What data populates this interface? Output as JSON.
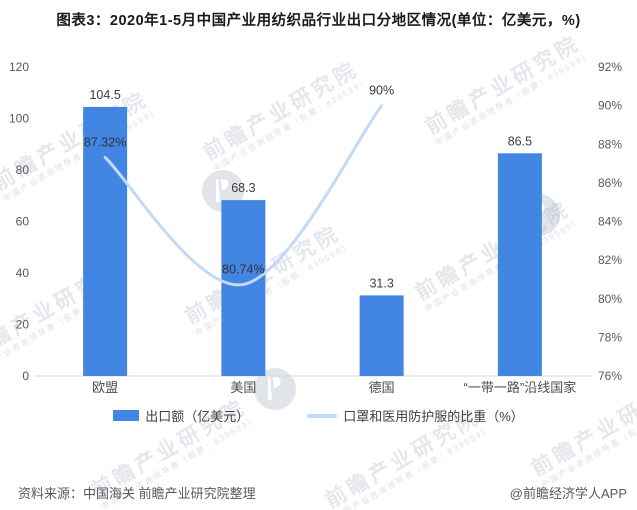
{
  "title": "图表3：2020年1-5月中国产业用纺织品行业出口分地区情况(单位：亿美元，%)",
  "chart_data": {
    "type": "bar",
    "title": "2020年1-5月中国产业用纺织品行业出口分地区情况",
    "categories": [
      "欧盟",
      "美国",
      "德国",
      "“一带一路”沿线国家"
    ],
    "series": [
      {
        "name": "出口额（亿美元）",
        "type": "bar",
        "axis": "left",
        "values": [
          104.5,
          68.3,
          31.3,
          86.5
        ],
        "labels": [
          "104.5",
          "68.3",
          "31.3",
          "86.5"
        ]
      },
      {
        "name": "口罩和医用防护服的比重（%）",
        "type": "line",
        "axis": "right",
        "values": [
          87.32,
          80.74,
          90,
          null
        ],
        "labels": [
          "87.32%",
          "80.74%",
          "90%",
          ""
        ]
      }
    ],
    "left_axis": {
      "min": 0,
      "max": 120,
      "ticks": [
        "0",
        "20",
        "40",
        "60",
        "80",
        "100",
        "120"
      ]
    },
    "right_axis": {
      "min": 76,
      "max": 92,
      "ticks": [
        "76%",
        "78%",
        "80%",
        "82%",
        "84%",
        "86%",
        "88%",
        "90%",
        "92%"
      ]
    },
    "grid": false,
    "legend_position": "bottom"
  },
  "footer": {
    "source": "资料来源：中国海关 前瞻产业研究院整理",
    "credit": "@前瞻经济学人APP"
  },
  "watermark": {
    "main": "前瞻产业研究院",
    "sub": "中国产业咨询领导者（股票：839599）"
  },
  "colors": {
    "bar": "#4285E2",
    "line": "#C3DAF5",
    "axis_line": "#D9D9D9",
    "tick_text": "#595959",
    "value_text": "#3D3D3D",
    "category_text": "#4D4D4D"
  }
}
